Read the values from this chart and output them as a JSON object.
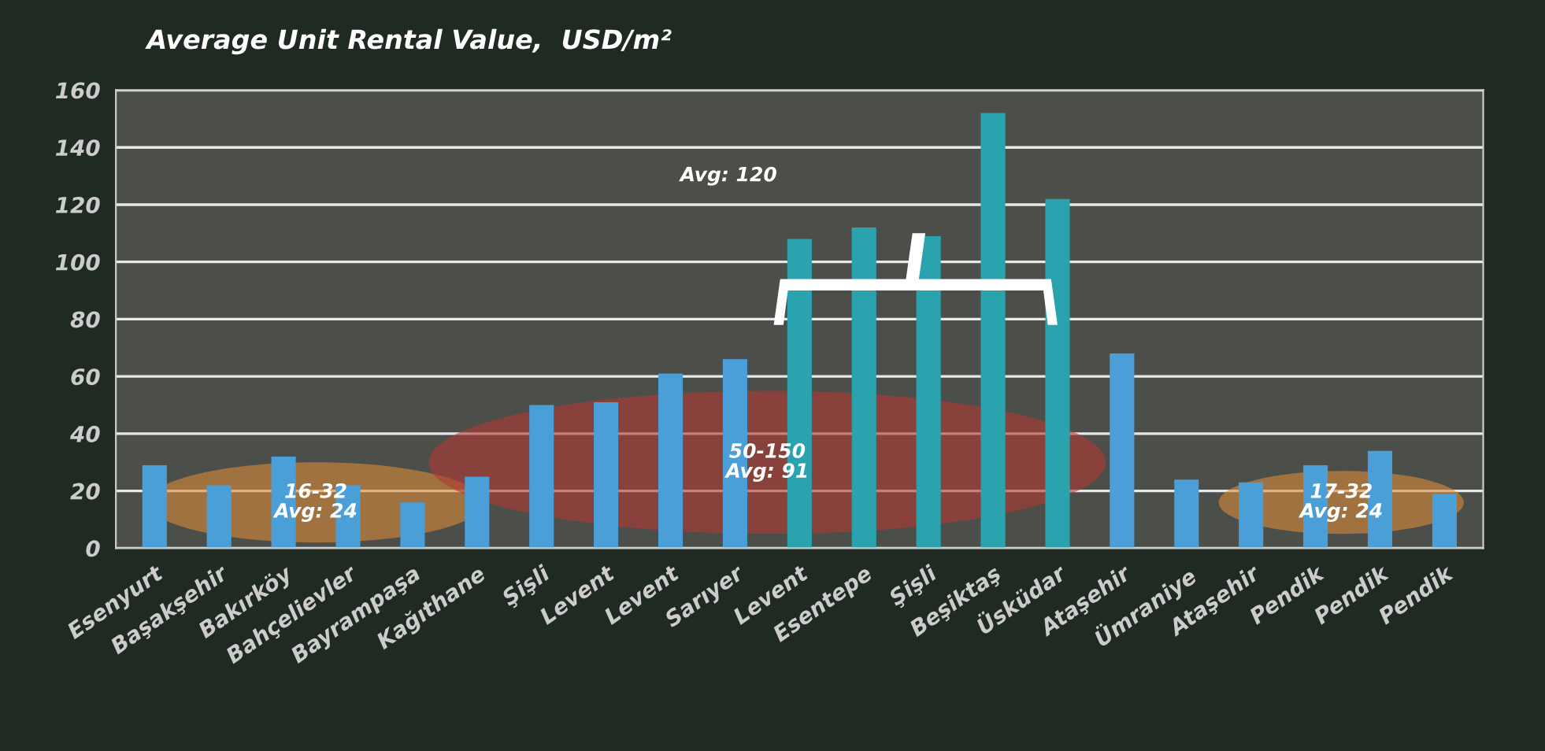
{
  "chart_data": {
    "type": "bar",
    "title": "Average Unit Rental Value,  USD/m²",
    "categories": [
      "Esenyurt",
      "Başakşehir",
      "Bakırköy",
      "Bahçelievler",
      "Bayrampaşa",
      "Kağıthane",
      "Şişli",
      "Levent",
      "Levent",
      "Sarıyer",
      "Levent",
      "Esentepe",
      "Şişli",
      "Beşiktaş",
      "Üsküdar",
      "Ataşehir",
      "Ümraniye",
      "Ataşehir",
      "Pendik",
      "Pendik",
      "Pendik"
    ],
    "values": [
      29,
      22,
      32,
      22,
      16,
      25,
      50,
      51,
      61,
      66,
      108,
      112,
      109,
      152,
      122,
      68,
      24,
      23,
      29,
      34,
      19
    ],
    "colors": [
      "#4a9fd8",
      "#4a9fd8",
      "#4a9fd8",
      "#4a9fd8",
      "#4a9fd8",
      "#4a9fd8",
      "#4a9fd8",
      "#4a9fd8",
      "#4a9fd8",
      "#4a9fd8",
      "#2aa3ae",
      "#2aa3ae",
      "#2aa3ae",
      "#2aa3ae",
      "#2aa3ae",
      "#4a9fd8",
      "#4a9fd8",
      "#4a9fd8",
      "#4a9fd8",
      "#4a9fd8",
      "#4a9fd8"
    ],
    "ylim": [
      0,
      160
    ],
    "yticks": [
      0,
      20,
      40,
      60,
      80,
      100,
      120,
      140,
      160
    ],
    "grid": "y",
    "annotations": [
      "16-32\nAvg: 24",
      "50-150\nAvg: 91",
      "Avg: 120",
      "17-32\nAvg: 24"
    ]
  }
}
